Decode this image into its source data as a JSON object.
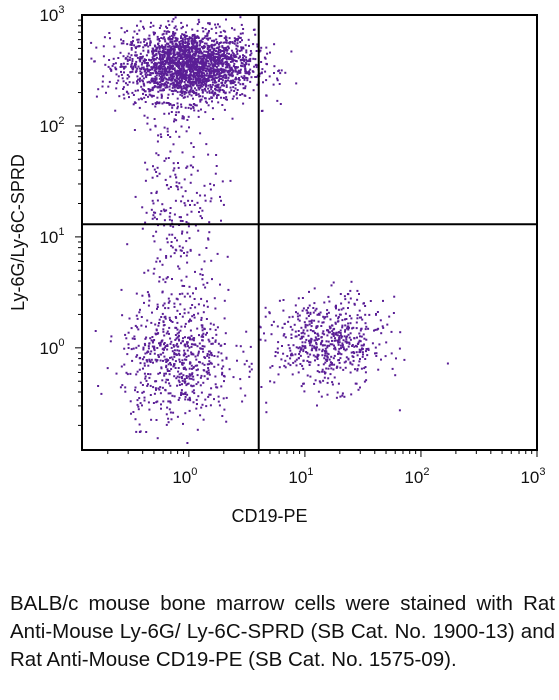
{
  "chart_data": {
    "type": "scatter",
    "title": "",
    "xlabel": "CD19-PE",
    "ylabel": "Ly-6G/Ly-6C-SPRD",
    "xscale": "log",
    "yscale": "log",
    "xlim": [
      0.12,
      1000
    ],
    "ylim": [
      0.12,
      1000
    ],
    "x_ticks": [
      {
        "base": "10",
        "exp": "0",
        "value": 1
      },
      {
        "base": "10",
        "exp": "1",
        "value": 10
      },
      {
        "base": "10",
        "exp": "2",
        "value": 100
      },
      {
        "base": "10",
        "exp": "3",
        "value": 1000
      }
    ],
    "y_ticks": [
      {
        "base": "10",
        "exp": "0",
        "value": 1
      },
      {
        "base": "10",
        "exp": "1",
        "value": 10
      },
      {
        "base": "10",
        "exp": "2",
        "value": 100
      },
      {
        "base": "10",
        "exp": "3",
        "value": 1000
      }
    ],
    "quadrant_gates": {
      "x": 4,
      "y": 13
    },
    "point_color": "#5a1e96",
    "populations": [
      {
        "center_x": 1.0,
        "center_y": 350,
        "spread_x": 0.28,
        "spread_y": 0.16,
        "count": 2400
      },
      {
        "center_x": 0.8,
        "center_y": 0.8,
        "spread_x": 0.24,
        "spread_y": 0.28,
        "count": 650
      },
      {
        "center_x": 16,
        "center_y": 1.1,
        "spread_x": 0.24,
        "spread_y": 0.2,
        "count": 600
      },
      {
        "center_x": 0.85,
        "center_y": 20,
        "spread_x": 0.18,
        "spread_y": 0.55,
        "count": 280
      }
    ]
  },
  "caption": "BALB/c mouse bone marrow cells were stained with Rat Anti-Mouse Ly-6G/ Ly-6C-SPRD (SB Cat. No. 1900-13) and Rat Anti-Mouse CD19-PE (SB Cat. No. 1575-09)."
}
